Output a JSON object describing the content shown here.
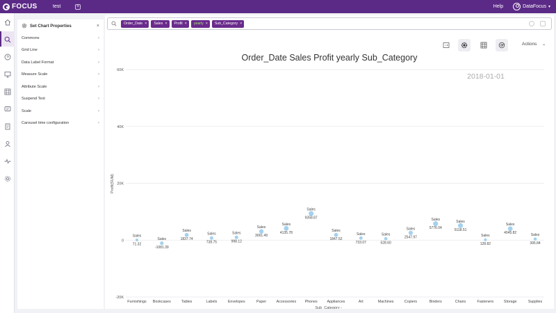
{
  "app": {
    "logo_text": "FOCUS",
    "tab_name": "test",
    "add_tab": "+",
    "help": "Help",
    "user": "DataFocus"
  },
  "rail": {
    "icons": [
      "home-icon",
      "search-icon",
      "question-icon",
      "monitor-icon",
      "table-icon",
      "message-icon",
      "document-icon",
      "person-icon",
      "pulse-icon",
      "settings-icon"
    ],
    "active_index": 1
  },
  "props": {
    "title": "Set Chart Properties",
    "close": "×",
    "items": [
      {
        "label": "Commons"
      },
      {
        "label": "Grid Line"
      },
      {
        "label": "Data Label Format"
      },
      {
        "label": "Measure Scale"
      },
      {
        "label": "Attribute Scale"
      },
      {
        "label": "Suspend Text"
      },
      {
        "label": "Scale"
      },
      {
        "label": "Carousel time configuration"
      }
    ]
  },
  "search": {
    "tokens": [
      {
        "label": "Order_Date",
        "keyword": false
      },
      {
        "label": "Sales",
        "keyword": false
      },
      {
        "label": "Profit",
        "keyword": false
      },
      {
        "label": "yearly",
        "keyword": true
      },
      {
        "label": "Sub_Category",
        "keyword": false
      }
    ]
  },
  "toolbar": {
    "actions_label": "Actions",
    "active_tool": "settings"
  },
  "chart_data": {
    "type": "scatter",
    "title": "Order_Date Sales Profit yearly Sub_Category",
    "timestamp": "2018-01-01",
    "xlabel": "Sub_Category",
    "ylabel": "Profit(SUM)",
    "ylim": [
      -20000,
      60000
    ],
    "yticks": [
      -20000,
      0,
      20000,
      40000,
      60000
    ],
    "ytick_labels": [
      "-20K",
      "0",
      "20K",
      "40K",
      "60K"
    ],
    "categories": [
      "Furnishings",
      "Bookcases",
      "Tables",
      "Labels",
      "Envelopes",
      "Paper",
      "Accessories",
      "Phones",
      "Appliances",
      "Art",
      "Machines",
      "Copiers",
      "Binders",
      "Chairs",
      "Fasteners",
      "Storage",
      "Supplies"
    ],
    "values": [
      71.32,
      -1081.39,
      1837.74,
      738.75,
      998.12,
      3061.49,
      4135.78,
      9358.87,
      1847.52,
      733.07,
      528.6,
      2547.97,
      5776.04,
      5118.51,
      128.82,
      4045.82,
      395.84
    ],
    "value_labels": [
      "71.32",
      "-1081.39",
      "1837.74",
      "738.75",
      "998.12",
      "3061.49",
      "4135.78",
      "9358.87",
      "1847.52",
      "733.07",
      "528.60",
      "2547.97",
      "5776.04",
      "5118.51",
      "128.82",
      "4045.82",
      "395.84"
    ],
    "point_label": "Sales",
    "point_color": "#8ec6ea",
    "grid": true
  }
}
